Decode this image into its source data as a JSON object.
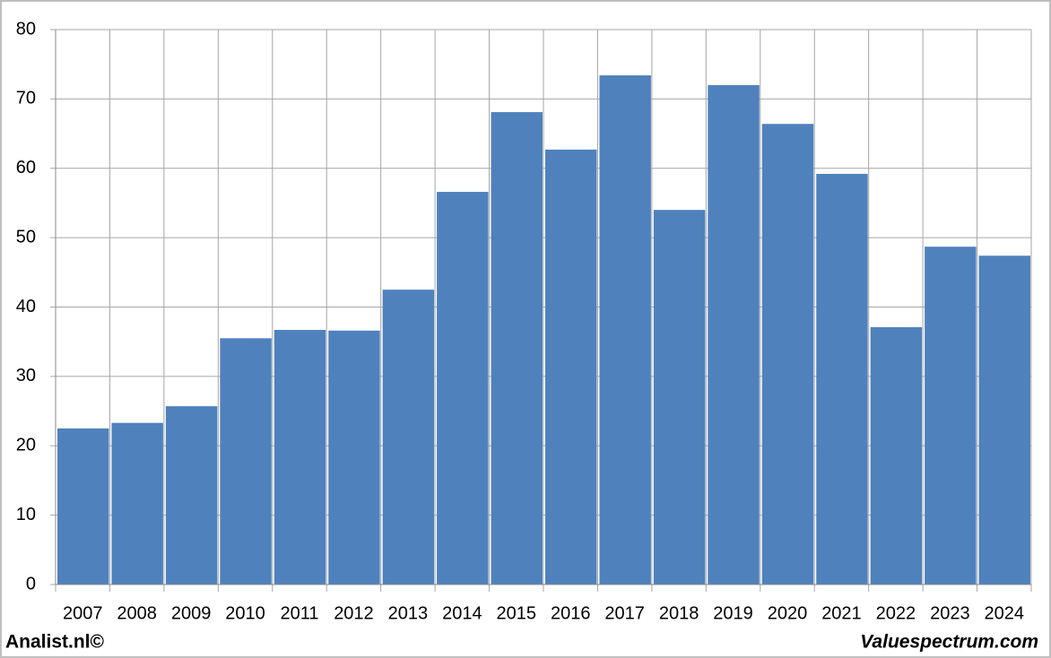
{
  "chart_data": {
    "type": "bar",
    "categories": [
      "2007",
      "2008",
      "2009",
      "2010",
      "2011",
      "2012",
      "2013",
      "2014",
      "2015",
      "2016",
      "2017",
      "2018",
      "2019",
      "2020",
      "2021",
      "2022",
      "2023",
      "2024"
    ],
    "values": [
      22.5,
      23.3,
      25.7,
      35.5,
      36.7,
      36.6,
      42.5,
      56.6,
      68.1,
      62.7,
      73.4,
      54.0,
      72.0,
      66.4,
      59.2,
      37.1,
      48.7,
      47.4
    ],
    "color": "#4f81bd",
    "ylim": [
      0,
      80
    ],
    "yticks": [
      0,
      10,
      20,
      30,
      40,
      50,
      60,
      70,
      80
    ],
    "grid": true
  },
  "footer": {
    "left": "Analist.nl©",
    "right": "Valuespectrum.com"
  }
}
